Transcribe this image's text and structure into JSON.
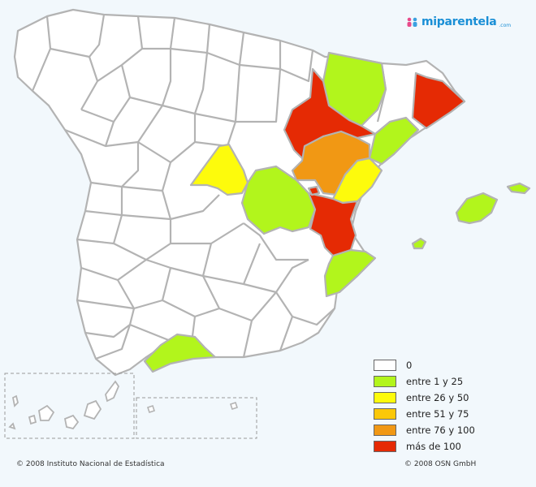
{
  "brand": {
    "name": "miparentela",
    "suffix": ".com",
    "icon": "people-icon"
  },
  "legend": [
    {
      "label": "0",
      "color": "#ffffff"
    },
    {
      "label": "entre 1 y 25",
      "color": "#b2f51c"
    },
    {
      "label": "entre 26 y 50",
      "color": "#fdfb0c"
    },
    {
      "label": "entre 51 y 75",
      "color": "#fbc808"
    },
    {
      "label": "entre 76 y 100",
      "color": "#f19814"
    },
    {
      "label": "más de 100",
      "color": "#e52a04"
    }
  ],
  "colors": {
    "zero": "#ffffff",
    "border": "#b3b3b3",
    "background": "#f2f8fc",
    "brand": "#1a8fd6"
  },
  "footer": {
    "left": "© 2008 Instituto Nacional de Estadística",
    "right": "© 2008 OSN GmbH"
  }
}
